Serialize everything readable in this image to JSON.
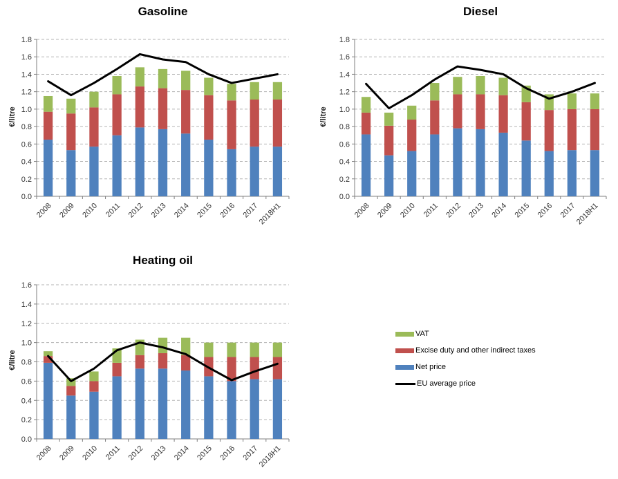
{
  "legend": {
    "items": [
      {
        "label": "VAT",
        "color": "#9bbb59",
        "type": "box"
      },
      {
        "label": "Excise duty and other indirect taxes",
        "color": "#c0504d",
        "type": "box"
      },
      {
        "label": "Net price",
        "color": "#4f81bd",
        "type": "box"
      },
      {
        "label": "EU average price",
        "color": "#000000",
        "type": "line"
      }
    ]
  },
  "chart_data": [
    {
      "type": "bar",
      "subtype": "stacked-bars-with-line",
      "title": "Gasoline",
      "ylabel": "€/litre",
      "ylim": [
        0,
        1.8
      ],
      "ytick_step": 0.2,
      "grid": "dashed-horizontal",
      "categories": [
        "2008",
        "2009",
        "2010",
        "2011",
        "2012",
        "2013",
        "2014",
        "2015",
        "2016",
        "2017",
        "2018H1"
      ],
      "series": [
        {
          "name": "Net price",
          "color": "#4f81bd",
          "values": [
            0.65,
            0.53,
            0.57,
            0.7,
            0.79,
            0.77,
            0.72,
            0.65,
            0.54,
            0.57,
            0.57
          ]
        },
        {
          "name": "Excise duty and other indirect taxes",
          "color": "#c0504d",
          "values": [
            0.32,
            0.42,
            0.45,
            0.47,
            0.47,
            0.47,
            0.5,
            0.51,
            0.56,
            0.54,
            0.54
          ]
        },
        {
          "name": "VAT",
          "color": "#9bbb59",
          "values": [
            0.18,
            0.17,
            0.18,
            0.21,
            0.22,
            0.22,
            0.22,
            0.2,
            0.19,
            0.2,
            0.2
          ]
        }
      ],
      "line_series": {
        "name": "EU average price",
        "color": "#000000",
        "values": [
          1.32,
          1.16,
          1.3,
          1.46,
          1.63,
          1.57,
          1.54,
          1.4,
          1.3,
          1.35,
          1.4
        ]
      }
    },
    {
      "type": "bar",
      "subtype": "stacked-bars-with-line",
      "title": "Diesel",
      "ylabel": "€/litre",
      "ylim": [
        0,
        1.8
      ],
      "ytick_step": 0.2,
      "grid": "dashed-horizontal",
      "categories": [
        "2008",
        "2009",
        "2010",
        "2011",
        "2012",
        "2013",
        "2014",
        "2015",
        "2016",
        "2017",
        "2018H1"
      ],
      "series": [
        {
          "name": "Net price",
          "color": "#4f81bd",
          "values": [
            0.71,
            0.47,
            0.52,
            0.71,
            0.78,
            0.77,
            0.73,
            0.64,
            0.52,
            0.53,
            0.53
          ]
        },
        {
          "name": "Excise duty and other indirect taxes",
          "color": "#c0504d",
          "values": [
            0.25,
            0.34,
            0.36,
            0.39,
            0.39,
            0.4,
            0.43,
            0.44,
            0.47,
            0.47,
            0.47
          ]
        },
        {
          "name": "VAT",
          "color": "#9bbb59",
          "values": [
            0.18,
            0.15,
            0.16,
            0.2,
            0.2,
            0.21,
            0.2,
            0.19,
            0.18,
            0.18,
            0.18
          ]
        }
      ],
      "line_series": {
        "name": "EU average price",
        "color": "#000000",
        "values": [
          1.29,
          1.01,
          1.16,
          1.34,
          1.49,
          1.45,
          1.4,
          1.24,
          1.12,
          1.2,
          1.3
        ]
      }
    },
    {
      "type": "bar",
      "subtype": "stacked-bars-with-line",
      "title": "Heating oil",
      "ylabel": "€/litre",
      "ylim": [
        0,
        1.6
      ],
      "ytick_step": 0.2,
      "grid": "dashed-horizontal",
      "categories": [
        "2008",
        "2009",
        "2010",
        "2011",
        "2012",
        "2013",
        "2014",
        "2015",
        "2016",
        "2017",
        "2018H1"
      ],
      "series": [
        {
          "name": "Net price",
          "color": "#4f81bd",
          "values": [
            0.79,
            0.45,
            0.49,
            0.65,
            0.73,
            0.73,
            0.71,
            0.65,
            0.6,
            0.62,
            0.62
          ]
        },
        {
          "name": "Excise duty and other indirect taxes",
          "color": "#c0504d",
          "values": [
            0.07,
            0.1,
            0.11,
            0.14,
            0.14,
            0.16,
            0.16,
            0.2,
            0.25,
            0.23,
            0.23
          ]
        },
        {
          "name": "VAT",
          "color": "#9bbb59",
          "values": [
            0.05,
            0.08,
            0.1,
            0.15,
            0.16,
            0.16,
            0.18,
            0.15,
            0.15,
            0.15,
            0.15
          ]
        }
      ],
      "line_series": {
        "name": "EU average price",
        "color": "#000000",
        "values": [
          0.86,
          0.6,
          0.73,
          0.92,
          1.0,
          0.95,
          0.88,
          0.74,
          0.61,
          0.7,
          0.78
        ]
      }
    }
  ]
}
